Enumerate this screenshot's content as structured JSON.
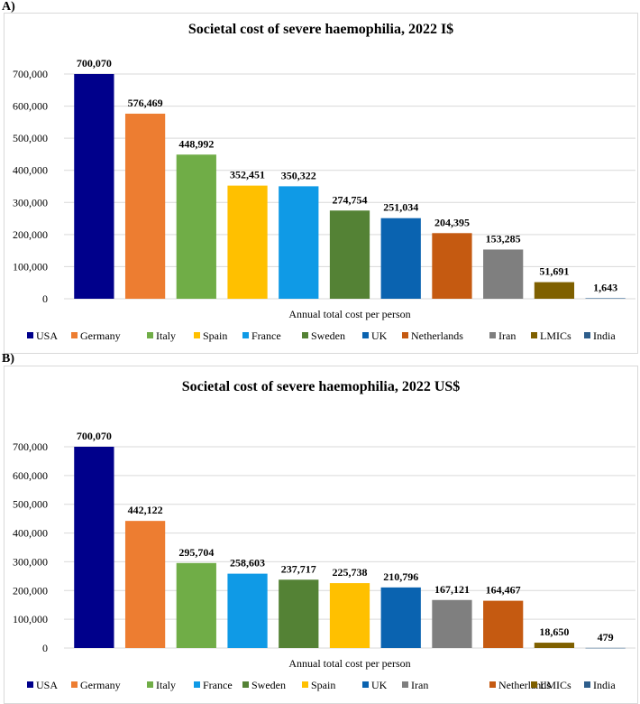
{
  "charts": [
    {
      "panel_label": "A)",
      "legend_order": [
        "USA",
        "Germany",
        "Italy",
        "Spain",
        "France",
        "Sweden",
        "UK",
        "Netherlands",
        "Iran",
        "LMICs",
        "India"
      ]
    },
    {
      "panel_label": "B)",
      "legend_order": [
        "USA",
        "Germany",
        "Italy",
        "France",
        "Sweden",
        "Spain",
        "UK",
        "Iran",
        "Netherlands",
        "LMICs",
        "India"
      ]
    }
  ],
  "colors": {
    "USA": "#00008b",
    "Germany": "#ed7d31",
    "Italy": "#70ad47",
    "Spain": "#ffc000",
    "France": "#0f9ae6",
    "Sweden": "#548235",
    "UK": "#0a63b0",
    "Netherlands": "#c55a11",
    "Iran": "#7f7f7f",
    "LMICs": "#7f6000",
    "India": "#2e5e8c"
  },
  "chart_data": [
    {
      "type": "bar",
      "title": "Societal cost of severe haemophilia, 2022 I$",
      "xlabel": "Annual total cost per person",
      "ylabel": "",
      "ylim": [
        0,
        700000
      ],
      "yticks": [
        "0",
        "100,000",
        "200,000",
        "300,000",
        "400,000",
        "500,000",
        "600,000",
        "700,000"
      ],
      "categories": [
        "USA",
        "Germany",
        "Italy",
        "Spain",
        "France",
        "Sweden",
        "UK",
        "Netherlands",
        "Iran",
        "LMICs",
        "India"
      ],
      "values": [
        700070,
        576469,
        448992,
        352451,
        350322,
        274754,
        251034,
        204395,
        153285,
        51691,
        1643
      ],
      "value_labels": [
        "700,070",
        "576,469",
        "448,992",
        "352,451",
        "350,322",
        "274,754",
        "251,034",
        "204,395",
        "153,285",
        "51,691",
        "1,643"
      ],
      "legend": "bottom",
      "grid": true
    },
    {
      "type": "bar",
      "title": "Societal cost of severe haemophilia, 2022 US$",
      "xlabel": "Annual total cost per person",
      "ylabel": "",
      "ylim": [
        0,
        700000
      ],
      "yticks": [
        "0",
        "100,000",
        "200,000",
        "300,000",
        "400,000",
        "500,000",
        "600,000",
        "700,000"
      ],
      "categories": [
        "USA",
        "Germany",
        "Italy",
        "France",
        "Sweden",
        "Spain",
        "UK",
        "Iran",
        "Netherlands",
        "LMICs",
        "India"
      ],
      "values": [
        700070,
        442122,
        295704,
        258603,
        237717,
        225738,
        210796,
        167121,
        164467,
        18650,
        479
      ],
      "value_labels": [
        "700,070",
        "442,122",
        "295,704",
        "258,603",
        "237,717",
        "225,738",
        "210,796",
        "167,121",
        "164,467",
        "18,650",
        "479"
      ],
      "legend": "bottom",
      "grid": true
    }
  ]
}
